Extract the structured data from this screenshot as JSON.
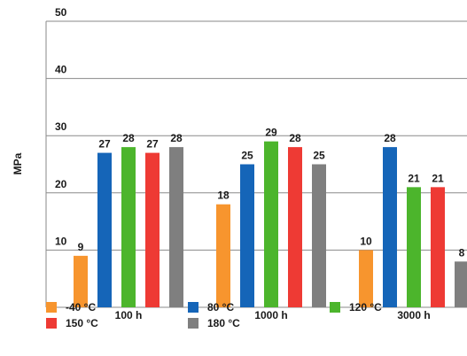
{
  "chart_data": {
    "type": "bar",
    "title": "",
    "xlabel": "",
    "ylabel": "MPa",
    "ylim": [
      0,
      50
    ],
    "yticks": [
      10,
      20,
      30,
      40,
      50
    ],
    "grid": true,
    "legend_position": "bottom",
    "categories": [
      "100 h",
      "1000 h",
      "3000 h"
    ],
    "series": [
      {
        "name": "-40 °C",
        "color": "#f7952e",
        "values": [
          9,
          18,
          10
        ]
      },
      {
        "name": "80 °C",
        "color": "#1565b8",
        "values": [
          27,
          25,
          28
        ]
      },
      {
        "name": "120 °C",
        "color": "#4cb52c",
        "values": [
          28,
          29,
          21
        ]
      },
      {
        "name": "150 °C",
        "color": "#ee3a34",
        "values": [
          27,
          28,
          21
        ]
      },
      {
        "name": "180 °C",
        "color": "#7f7f7f",
        "values": [
          28,
          25,
          8
        ]
      }
    ]
  }
}
